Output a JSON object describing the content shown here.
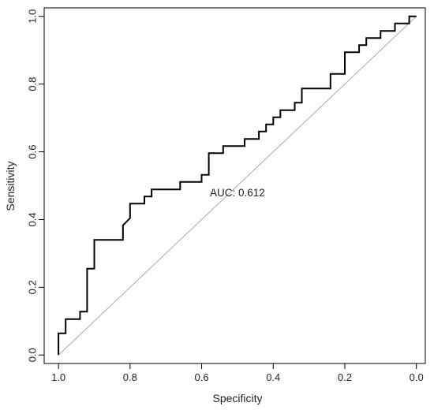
{
  "chart_data": {
    "type": "line",
    "title": "",
    "xlabel": "Specificity",
    "ylabel": "Sensitivity",
    "x_reversed": true,
    "xlim": [
      1.04,
      -0.025
    ],
    "ylim": [
      -0.025,
      1.025
    ],
    "xticks": [
      1.0,
      0.8,
      0.6,
      0.4,
      0.2,
      0.0
    ],
    "xtick_labels": [
      "1.0",
      "0.8",
      "0.6",
      "0.4",
      "0.2",
      "0.0"
    ],
    "yticks": [
      0.0,
      0.2,
      0.4,
      0.6,
      0.8,
      1.0
    ],
    "ytick_labels": [
      "0.0",
      "0.2",
      "0.4",
      "0.6",
      "0.8",
      "1.0"
    ],
    "grid": false,
    "annotation": {
      "text": "AUC: 0.612",
      "x": 0.5,
      "y": 0.48
    },
    "reference_line": {
      "from": [
        1.0,
        0.0
      ],
      "to": [
        0.0,
        1.0
      ],
      "color": "#aaaaaa"
    },
    "series": [
      {
        "color": "#000000",
        "points": [
          [
            1.0,
            0.0
          ],
          [
            1.0,
            0.064
          ],
          [
            0.98,
            0.064
          ],
          [
            0.98,
            0.106
          ],
          [
            0.94,
            0.106
          ],
          [
            0.94,
            0.128
          ],
          [
            0.92,
            0.128
          ],
          [
            0.92,
            0.255
          ],
          [
            0.9,
            0.255
          ],
          [
            0.9,
            0.34
          ],
          [
            0.82,
            0.34
          ],
          [
            0.82,
            0.383
          ],
          [
            0.8,
            0.404
          ],
          [
            0.8,
            0.447
          ],
          [
            0.76,
            0.447
          ],
          [
            0.76,
            0.468
          ],
          [
            0.74,
            0.468
          ],
          [
            0.74,
            0.489
          ],
          [
            0.66,
            0.489
          ],
          [
            0.66,
            0.511
          ],
          [
            0.6,
            0.511
          ],
          [
            0.6,
            0.532
          ],
          [
            0.58,
            0.532
          ],
          [
            0.58,
            0.596
          ],
          [
            0.54,
            0.596
          ],
          [
            0.54,
            0.617
          ],
          [
            0.48,
            0.617
          ],
          [
            0.48,
            0.638
          ],
          [
            0.44,
            0.638
          ],
          [
            0.44,
            0.66
          ],
          [
            0.42,
            0.66
          ],
          [
            0.42,
            0.681
          ],
          [
            0.4,
            0.681
          ],
          [
            0.4,
            0.702
          ],
          [
            0.38,
            0.702
          ],
          [
            0.38,
            0.723
          ],
          [
            0.34,
            0.723
          ],
          [
            0.34,
            0.745
          ],
          [
            0.32,
            0.745
          ],
          [
            0.32,
            0.787
          ],
          [
            0.24,
            0.787
          ],
          [
            0.24,
            0.83
          ],
          [
            0.2,
            0.83
          ],
          [
            0.2,
            0.894
          ],
          [
            0.16,
            0.894
          ],
          [
            0.16,
            0.915
          ],
          [
            0.14,
            0.915
          ],
          [
            0.14,
            0.936
          ],
          [
            0.1,
            0.936
          ],
          [
            0.1,
            0.957
          ],
          [
            0.06,
            0.957
          ],
          [
            0.06,
            0.979
          ],
          [
            0.02,
            0.979
          ],
          [
            0.02,
            1.0
          ],
          [
            0.0,
            1.0
          ]
        ]
      }
    ]
  }
}
